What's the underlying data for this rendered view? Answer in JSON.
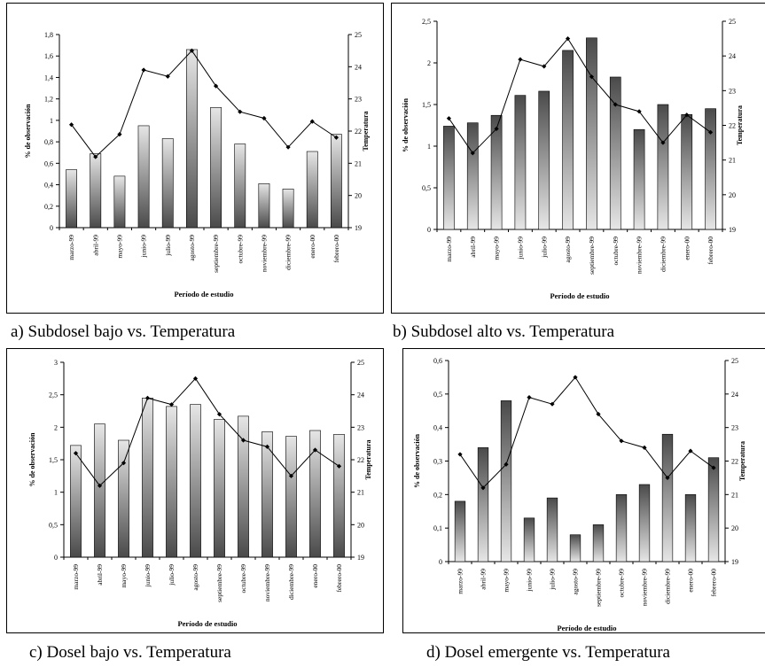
{
  "figure": {
    "captions": [
      "a) Subdosel bajo vs. Temperatura",
      "b) Subdosel alto vs. Temperatura",
      "c) Dosel bajo vs. Temperatura",
      "d) Dosel emergente vs. Temperatura"
    ]
  },
  "chart_data": [
    {
      "type": "bar",
      "categories": [
        "marzo-99",
        "abril-99",
        "mayo-99",
        "junio-99",
        "julio-99",
        "agosto-99",
        "septiembre-99",
        "octubre-99",
        "noviembre-99",
        "diciembre-99",
        "enero-00",
        "febrero-00"
      ],
      "series": [
        {
          "values": [
            0.54,
            0.69,
            0.48,
            0.95,
            0.83,
            1.66,
            1.12,
            0.78,
            0.41,
            0.36,
            0.71,
            0.87
          ]
        },
        {
          "axis": "right",
          "line": true,
          "values": [
            22.2,
            21.2,
            21.9,
            23.9,
            23.7,
            24.5,
            23.4,
            22.6,
            22.4,
            21.5,
            22.3,
            21.8
          ]
        }
      ],
      "xlabel": "Período de estudio",
      "ylabel": "% de observación",
      "y2label": "Temperatura",
      "ylim": [
        0,
        1.8
      ],
      "yticks": [
        "0",
        "0,2",
        "0,4",
        "0,6",
        "0,8",
        "1",
        "1,2",
        "1,4",
        "1,6",
        "1,8"
      ],
      "y2lim": [
        19,
        25
      ],
      "y2ticks": [
        "19",
        "20",
        "21",
        "22",
        "23",
        "24",
        "25"
      ],
      "bar_gradient": "dark-bottom"
    },
    {
      "type": "bar",
      "categories": [
        "marzo-99",
        "abril-99",
        "mayo-99",
        "junio-99",
        "julio-99",
        "agosto-99",
        "septiembre-99",
        "octubre-99",
        "noviembre-99",
        "diciembre-99",
        "enero-00",
        "febrero-00"
      ],
      "series": [
        {
          "values": [
            1.24,
            1.28,
            1.37,
            1.61,
            1.66,
            2.15,
            2.3,
            1.83,
            1.2,
            1.5,
            1.38,
            1.45
          ]
        },
        {
          "axis": "right",
          "line": true,
          "values": [
            22.2,
            21.2,
            21.9,
            23.9,
            23.7,
            24.5,
            23.4,
            22.6,
            22.4,
            21.5,
            22.3,
            21.8
          ]
        }
      ],
      "xlabel": "Período de estudio",
      "ylabel": "% de observación",
      "y2label": "Temperatura",
      "ylim": [
        0,
        2.5
      ],
      "yticks": [
        "0",
        "0,5",
        "1",
        "1,5",
        "2",
        "2,5"
      ],
      "y2lim": [
        19,
        25
      ],
      "y2ticks": [
        "19",
        "20",
        "21",
        "22",
        "23",
        "24",
        "25"
      ],
      "bar_gradient": "dark-top"
    },
    {
      "type": "bar",
      "categories": [
        "marzo-99",
        "abril-99",
        "mayo-99",
        "junio-99",
        "julio-99",
        "agosto-99",
        "septiembre-99",
        "octubre-99",
        "noviembre-99",
        "diciembre-99",
        "enero-00",
        "febrero-00"
      ],
      "series": [
        {
          "values": [
            1.72,
            2.05,
            1.8,
            2.45,
            2.32,
            2.35,
            2.12,
            2.17,
            1.93,
            1.86,
            1.95,
            1.89
          ]
        },
        {
          "axis": "right",
          "line": true,
          "values": [
            22.2,
            21.2,
            21.9,
            23.9,
            23.7,
            24.5,
            23.4,
            22.6,
            22.4,
            21.5,
            22.3,
            21.8
          ]
        }
      ],
      "xlabel": "Período de estudio",
      "ylabel": "% de observación",
      "y2label": "Temperatura",
      "ylim": [
        0,
        3
      ],
      "yticks": [
        "0",
        "0,5",
        "1",
        "1,5",
        "2",
        "2,5",
        "3"
      ],
      "y2lim": [
        19,
        25
      ],
      "y2ticks": [
        "19",
        "20",
        "21",
        "22",
        "23",
        "24",
        "25"
      ],
      "bar_gradient": "dark-bottom"
    },
    {
      "type": "bar",
      "categories": [
        "marzo-99",
        "abril-99",
        "mayo-99",
        "junio-99",
        "julio-99",
        "agosto-99",
        "septiembre-99",
        "octubre-99",
        "noviembre-99",
        "diciembre-99",
        "enero-00",
        "febrero-00"
      ],
      "series": [
        {
          "values": [
            0.18,
            0.34,
            0.48,
            0.13,
            0.19,
            0.08,
            0.11,
            0.2,
            0.23,
            0.38,
            0.2,
            0.31
          ]
        },
        {
          "axis": "right",
          "line": true,
          "values": [
            22.2,
            21.2,
            21.9,
            23.9,
            23.7,
            24.5,
            23.4,
            22.6,
            22.4,
            21.5,
            22.3,
            21.8
          ]
        }
      ],
      "xlabel": "Período de estudio",
      "ylabel": "% de observación",
      "y2label": "Temperatura",
      "ylim": [
        0,
        0.6
      ],
      "yticks": [
        "0",
        "0,1",
        "0,2",
        "0,3",
        "0,4",
        "0,5",
        "0,6"
      ],
      "y2lim": [
        19,
        25
      ],
      "y2ticks": [
        "19",
        "20",
        "21",
        "22",
        "23",
        "24",
        "25"
      ],
      "bar_gradient": "dark-top"
    }
  ]
}
